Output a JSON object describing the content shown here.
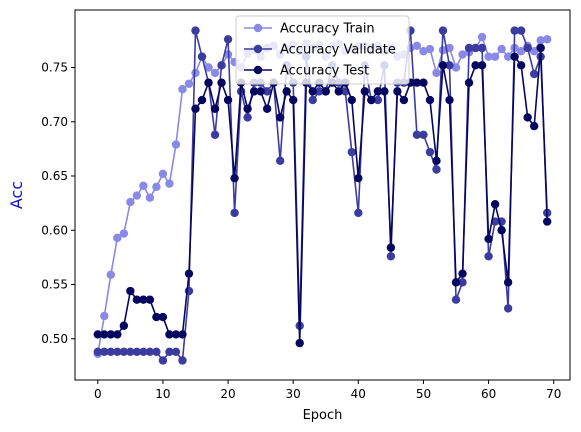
{
  "chart_data": {
    "type": "line",
    "xlabel": "Epoch",
    "ylabel": "Acc",
    "ylabel_color": "#1111cc",
    "xlim": [
      -3.5,
      72.5
    ],
    "ylim": [
      0.462,
      0.803
    ],
    "xticks": [
      0,
      10,
      20,
      30,
      40,
      50,
      60,
      70
    ],
    "yticks": [
      0.5,
      0.55,
      0.6,
      0.65,
      0.7,
      0.75
    ],
    "ytick_labels": [
      "0.50",
      "0.55",
      "0.60",
      "0.65",
      "0.70",
      "0.75"
    ],
    "grid": false,
    "legend_position": "top-center",
    "series": [
      {
        "name": "Accuracy Train",
        "color": "#8a8ae6",
        "x": [
          0,
          1,
          2,
          3,
          4,
          5,
          6,
          7,
          8,
          9,
          10,
          11,
          12,
          13,
          14,
          15,
          16,
          17,
          18,
          19,
          20,
          21,
          22,
          23,
          24,
          25,
          26,
          27,
          28,
          29,
          30,
          31,
          32,
          33,
          34,
          35,
          36,
          37,
          38,
          39,
          40,
          41,
          42,
          43,
          44,
          45,
          46,
          47,
          48,
          49,
          50,
          51,
          52,
          53,
          54,
          55,
          56,
          57,
          58,
          59,
          60,
          61,
          62,
          63,
          64,
          65,
          66,
          67,
          68,
          69
        ],
        "values": [
          0.486,
          0.521,
          0.559,
          0.593,
          0.597,
          0.626,
          0.632,
          0.641,
          0.63,
          0.64,
          0.652,
          0.643,
          0.679,
          0.73,
          0.735,
          0.745,
          0.76,
          0.75,
          0.745,
          0.752,
          0.762,
          0.755,
          0.75,
          0.763,
          0.766,
          0.76,
          0.768,
          0.77,
          0.762,
          0.768,
          0.771,
          0.765,
          0.772,
          0.768,
          0.771,
          0.76,
          0.77,
          0.772,
          0.765,
          0.767,
          0.77,
          0.77,
          0.768,
          0.77,
          0.765,
          0.768,
          0.76,
          0.762,
          0.768,
          0.77,
          0.765,
          0.767,
          0.745,
          0.766,
          0.768,
          0.75,
          0.762,
          0.764,
          0.768,
          0.778,
          0.76,
          0.76,
          0.767,
          0.76,
          0.768,
          0.765,
          0.77,
          0.765,
          0.775,
          0.776
        ]
      },
      {
        "name": "Accuracy Validate",
        "color": "#3c3ca0",
        "x": [
          0,
          1,
          2,
          3,
          4,
          5,
          6,
          7,
          8,
          9,
          10,
          11,
          12,
          13,
          14,
          15,
          16,
          17,
          18,
          19,
          20,
          21,
          22,
          23,
          24,
          25,
          26,
          27,
          28,
          29,
          30,
          31,
          32,
          33,
          34,
          35,
          36,
          37,
          38,
          39,
          40,
          41,
          42,
          43,
          44,
          45,
          46,
          47,
          48,
          49,
          50,
          51,
          52,
          53,
          54,
          55,
          56,
          57,
          58,
          59,
          60,
          61,
          62,
          63,
          64,
          65,
          66,
          67,
          68,
          69
        ],
        "values": [
          0.488,
          0.488,
          0.488,
          0.488,
          0.488,
          0.488,
          0.488,
          0.488,
          0.488,
          0.488,
          0.48,
          0.488,
          0.488,
          0.48,
          0.544,
          0.784,
          0.76,
          0.736,
          0.688,
          0.752,
          0.776,
          0.616,
          0.728,
          0.704,
          0.736,
          0.736,
          0.728,
          0.736,
          0.664,
          0.752,
          0.736,
          0.512,
          0.76,
          0.72,
          0.728,
          0.728,
          0.752,
          0.736,
          0.728,
          0.672,
          0.616,
          0.752,
          0.72,
          0.72,
          0.752,
          0.576,
          0.736,
          0.736,
          0.784,
          0.688,
          0.688,
          0.672,
          0.656,
          0.784,
          0.752,
          0.536,
          0.552,
          0.768,
          0.768,
          0.768,
          0.576,
          0.608,
          0.608,
          0.528,
          0.784,
          0.784,
          0.768,
          0.744,
          0.76,
          0.616
        ]
      },
      {
        "name": "Accuracy Test",
        "color": "#060660",
        "x": [
          0,
          1,
          2,
          3,
          4,
          5,
          6,
          7,
          8,
          9,
          10,
          11,
          12,
          13,
          14,
          15,
          16,
          17,
          18,
          19,
          20,
          21,
          22,
          23,
          24,
          25,
          26,
          27,
          28,
          29,
          30,
          31,
          32,
          33,
          34,
          35,
          36,
          37,
          38,
          39,
          40,
          41,
          42,
          43,
          44,
          45,
          46,
          47,
          48,
          49,
          50,
          51,
          52,
          53,
          54,
          55,
          56,
          57,
          58,
          59,
          60,
          61,
          62,
          63,
          64,
          65,
          66,
          67,
          68,
          69
        ],
        "values": [
          0.504,
          0.504,
          0.504,
          0.504,
          0.512,
          0.544,
          0.536,
          0.536,
          0.536,
          0.52,
          0.52,
          0.504,
          0.504,
          0.504,
          0.56,
          0.712,
          0.72,
          0.736,
          0.712,
          0.736,
          0.72,
          0.648,
          0.736,
          0.712,
          0.728,
          0.728,
          0.712,
          0.736,
          0.704,
          0.728,
          0.72,
          0.496,
          0.736,
          0.728,
          0.736,
          0.728,
          0.736,
          0.728,
          0.736,
          0.72,
          0.648,
          0.728,
          0.72,
          0.728,
          0.728,
          0.584,
          0.728,
          0.72,
          0.736,
          0.736,
          0.736,
          0.72,
          0.664,
          0.752,
          0.72,
          0.552,
          0.56,
          0.736,
          0.752,
          0.752,
          0.592,
          0.624,
          0.6,
          0.552,
          0.76,
          0.752,
          0.704,
          0.696,
          0.768,
          0.608
        ]
      }
    ]
  }
}
